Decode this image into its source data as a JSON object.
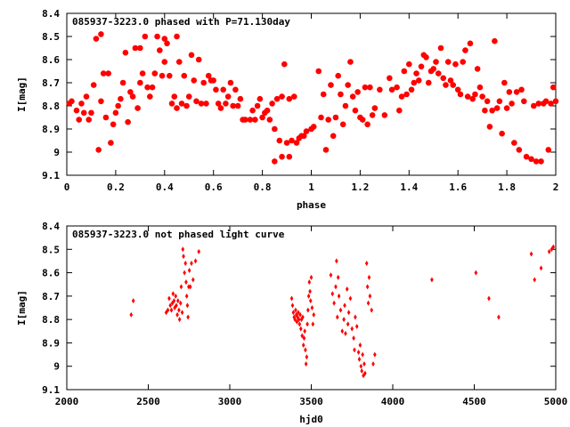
{
  "chart_data": [
    {
      "type": "scatter",
      "title": "085937-3223.0 phased with P=71.130day",
      "xlabel": "phase",
      "ylabel": "I[mag]",
      "xlim": [
        0,
        2
      ],
      "ylim": [
        9.1,
        8.4
      ],
      "y_inverted": true,
      "x_ticks": [
        "0",
        "0.2",
        "0.4",
        "0.6",
        "0.8",
        "1",
        "1.2",
        "1.4",
        "1.6",
        "1.8",
        "2"
      ],
      "y_ticks": [
        "8.4",
        "8.5",
        "8.6",
        "8.7",
        "8.8",
        "8.9",
        "9",
        "9.1"
      ],
      "marker": "filled-circle",
      "color": "#ff0000",
      "points": [
        [
          0.01,
          8.79
        ],
        [
          0.02,
          8.78
        ],
        [
          0.04,
          8.82
        ],
        [
          0.05,
          8.86
        ],
        [
          0.06,
          8.79
        ],
        [
          0.07,
          8.83
        ],
        [
          0.08,
          8.76
        ],
        [
          0.09,
          8.86
        ],
        [
          0.1,
          8.83
        ],
        [
          0.11,
          8.71
        ],
        [
          0.12,
          8.51
        ],
        [
          0.13,
          8.99
        ],
        [
          0.14,
          8.49
        ],
        [
          0.14,
          8.78
        ],
        [
          0.15,
          8.66
        ],
        [
          0.16,
          8.85
        ],
        [
          0.17,
          8.66
        ],
        [
          0.18,
          8.96
        ],
        [
          0.19,
          8.88
        ],
        [
          0.2,
          8.83
        ],
        [
          0.21,
          8.8
        ],
        [
          0.22,
          8.77
        ],
        [
          0.23,
          8.7
        ],
        [
          0.24,
          8.57
        ],
        [
          0.25,
          8.87
        ],
        [
          0.26,
          8.74
        ],
        [
          0.27,
          8.76
        ],
        [
          0.28,
          8.55
        ],
        [
          0.29,
          8.81
        ],
        [
          0.3,
          8.55
        ],
        [
          0.3,
          8.7
        ],
        [
          0.31,
          8.66
        ],
        [
          0.32,
          8.5
        ],
        [
          0.33,
          8.72
        ],
        [
          0.34,
          8.76
        ],
        [
          0.35,
          8.72
        ],
        [
          0.36,
          8.66
        ],
        [
          0.37,
          8.5
        ],
        [
          0.38,
          8.56
        ],
        [
          0.39,
          8.67
        ],
        [
          0.4,
          8.51
        ],
        [
          0.4,
          8.61
        ],
        [
          0.41,
          8.53
        ],
        [
          0.42,
          8.67
        ],
        [
          0.43,
          8.79
        ],
        [
          0.44,
          8.76
        ],
        [
          0.45,
          8.81
        ],
        [
          0.45,
          8.5
        ],
        [
          0.46,
          8.61
        ],
        [
          0.47,
          8.79
        ],
        [
          0.48,
          8.67
        ],
        [
          0.49,
          8.8
        ],
        [
          0.5,
          8.76
        ],
        [
          0.51,
          8.58
        ],
        [
          0.52,
          8.69
        ],
        [
          0.53,
          8.78
        ],
        [
          0.54,
          8.6
        ],
        [
          0.55,
          8.79
        ],
        [
          0.56,
          8.7
        ],
        [
          0.57,
          8.79
        ],
        [
          0.58,
          8.67
        ],
        [
          0.59,
          8.69
        ],
        [
          0.6,
          8.69
        ],
        [
          0.61,
          8.73
        ],
        [
          0.62,
          8.79
        ],
        [
          0.63,
          8.81
        ],
        [
          0.64,
          8.73
        ],
        [
          0.65,
          8.79
        ],
        [
          0.66,
          8.76
        ],
        [
          0.67,
          8.7
        ],
        [
          0.68,
          8.8
        ],
        [
          0.69,
          8.73
        ],
        [
          0.7,
          8.8
        ],
        [
          0.71,
          8.77
        ],
        [
          0.72,
          8.86
        ],
        [
          0.73,
          8.86
        ],
        [
          0.75,
          8.86
        ],
        [
          0.76,
          8.82
        ],
        [
          0.77,
          8.86
        ],
        [
          0.78,
          8.8
        ],
        [
          0.79,
          8.77
        ],
        [
          0.8,
          8.85
        ],
        [
          0.81,
          8.83
        ],
        [
          0.82,
          8.82
        ],
        [
          0.83,
          8.86
        ],
        [
          0.84,
          8.79
        ],
        [
          0.85,
          8.9
        ],
        [
          0.85,
          9.04
        ],
        [
          0.86,
          8.77
        ],
        [
          0.87,
          8.95
        ],
        [
          0.88,
          9.02
        ],
        [
          0.88,
          8.76
        ],
        [
          0.89,
          8.62
        ],
        [
          0.9,
          8.96
        ],
        [
          0.91,
          9.02
        ],
        [
          0.91,
          8.77
        ],
        [
          0.92,
          8.95
        ],
        [
          0.93,
          8.76
        ],
        [
          0.94,
          8.96
        ],
        [
          0.95,
          8.94
        ],
        [
          0.96,
          8.93
        ],
        [
          0.97,
          8.93
        ],
        [
          0.98,
          8.91
        ],
        [
          1.0,
          8.9
        ],
        [
          1.01,
          8.89
        ],
        [
          1.03,
          8.65
        ],
        [
          1.04,
          8.85
        ],
        [
          1.05,
          8.75
        ],
        [
          1.06,
          8.99
        ],
        [
          1.07,
          8.86
        ],
        [
          1.08,
          8.71
        ],
        [
          1.09,
          8.93
        ],
        [
          1.1,
          8.85
        ],
        [
          1.11,
          8.67
        ],
        [
          1.12,
          8.75
        ],
        [
          1.13,
          8.88
        ],
        [
          1.14,
          8.8
        ],
        [
          1.15,
          8.71
        ],
        [
          1.16,
          8.61
        ],
        [
          1.17,
          8.76
        ],
        [
          1.18,
          8.82
        ],
        [
          1.19,
          8.74
        ],
        [
          1.2,
          8.85
        ],
        [
          1.21,
          8.86
        ],
        [
          1.22,
          8.72
        ],
        [
          1.23,
          8.88
        ],
        [
          1.24,
          8.72
        ],
        [
          1.25,
          8.84
        ],
        [
          1.26,
          8.81
        ],
        [
          1.28,
          8.73
        ],
        [
          1.3,
          8.84
        ],
        [
          1.32,
          8.68
        ],
        [
          1.33,
          8.73
        ],
        [
          1.35,
          8.72
        ],
        [
          1.36,
          8.82
        ],
        [
          1.37,
          8.76
        ],
        [
          1.38,
          8.65
        ],
        [
          1.39,
          8.75
        ],
        [
          1.4,
          8.62
        ],
        [
          1.41,
          8.73
        ],
        [
          1.42,
          8.7
        ],
        [
          1.43,
          8.66
        ],
        [
          1.44,
          8.69
        ],
        [
          1.45,
          8.63
        ],
        [
          1.46,
          8.58
        ],
        [
          1.47,
          8.59
        ],
        [
          1.48,
          8.7
        ],
        [
          1.49,
          8.65
        ],
        [
          1.5,
          8.64
        ],
        [
          1.51,
          8.61
        ],
        [
          1.52,
          8.66
        ],
        [
          1.53,
          8.55
        ],
        [
          1.54,
          8.68
        ],
        [
          1.55,
          8.71
        ],
        [
          1.56,
          8.61
        ],
        [
          1.57,
          8.69
        ],
        [
          1.58,
          8.71
        ],
        [
          1.59,
          8.62
        ],
        [
          1.6,
          8.73
        ],
        [
          1.61,
          8.75
        ],
        [
          1.62,
          8.61
        ],
        [
          1.63,
          8.56
        ],
        [
          1.64,
          8.76
        ],
        [
          1.65,
          8.53
        ],
        [
          1.66,
          8.77
        ],
        [
          1.67,
          8.75
        ],
        [
          1.68,
          8.64
        ],
        [
          1.69,
          8.72
        ],
        [
          1.7,
          8.76
        ],
        [
          1.71,
          8.82
        ],
        [
          1.72,
          8.78
        ],
        [
          1.73,
          8.89
        ],
        [
          1.74,
          8.82
        ],
        [
          1.75,
          8.52
        ],
        [
          1.76,
          8.81
        ],
        [
          1.77,
          8.78
        ],
        [
          1.78,
          8.92
        ],
        [
          1.79,
          8.7
        ],
        [
          1.8,
          8.81
        ],
        [
          1.81,
          8.74
        ],
        [
          1.82,
          8.79
        ],
        [
          1.83,
          8.96
        ],
        [
          1.84,
          8.74
        ],
        [
          1.85,
          8.99
        ],
        [
          1.86,
          8.73
        ],
        [
          1.87,
          8.78
        ],
        [
          1.88,
          9.02
        ],
        [
          1.9,
          9.03
        ],
        [
          1.91,
          8.8
        ],
        [
          1.92,
          9.04
        ],
        [
          1.93,
          8.79
        ],
        [
          1.94,
          9.04
        ],
        [
          1.95,
          8.79
        ],
        [
          1.96,
          8.78
        ],
        [
          1.97,
          8.99
        ],
        [
          1.98,
          8.79
        ],
        [
          1.99,
          8.72
        ],
        [
          2.0,
          8.78
        ]
      ]
    },
    {
      "type": "scatter",
      "title": "085937-3223.0 not phased light curve",
      "xlabel": "hjd0",
      "ylabel": "I[mag]",
      "xlim": [
        2000,
        5000
      ],
      "ylim": [
        9.1,
        8.4
      ],
      "y_inverted": true,
      "x_ticks": [
        "2000",
        "2500",
        "3000",
        "3500",
        "4000",
        "4500",
        "5000"
      ],
      "y_ticks": [
        "8.4",
        "8.5",
        "8.6",
        "8.7",
        "8.8",
        "8.9",
        "9",
        "9.1"
      ],
      "marker": "small-diamond",
      "color": "#ff0000",
      "points": [
        [
          2395,
          8.78
        ],
        [
          2408,
          8.72
        ],
        [
          2610,
          8.77
        ],
        [
          2620,
          8.76
        ],
        [
          2628,
          8.71
        ],
        [
          2635,
          8.74
        ],
        [
          2642,
          8.76
        ],
        [
          2648,
          8.73
        ],
        [
          2652,
          8.69
        ],
        [
          2658,
          8.72
        ],
        [
          2662,
          8.75
        ],
        [
          2668,
          8.7
        ],
        [
          2672,
          8.74
        ],
        [
          2678,
          8.78
        ],
        [
          2682,
          8.72
        ],
        [
          2688,
          8.76
        ],
        [
          2692,
          8.8
        ],
        [
          2698,
          8.73
        ],
        [
          2702,
          8.66
        ],
        [
          2708,
          8.77
        ],
        [
          2712,
          8.5
        ],
        [
          2716,
          8.53
        ],
        [
          2722,
          8.6
        ],
        [
          2728,
          8.56
        ],
        [
          2732,
          8.64
        ],
        [
          2736,
          8.7
        ],
        [
          2740,
          8.74
        ],
        [
          2744,
          8.79
        ],
        [
          2748,
          8.66
        ],
        [
          2752,
          8.59
        ],
        [
          2758,
          8.66
        ],
        [
          2765,
          8.56
        ],
        [
          2775,
          8.63
        ],
        [
          2790,
          8.55
        ],
        [
          2810,
          8.51
        ],
        [
          3380,
          8.71
        ],
        [
          3385,
          8.74
        ],
        [
          3390,
          8.77
        ],
        [
          3395,
          8.79
        ],
        [
          3400,
          8.8
        ],
        [
          3404,
          8.76
        ],
        [
          3408,
          8.78
        ],
        [
          3412,
          8.81
        ],
        [
          3416,
          8.79
        ],
        [
          3420,
          8.77
        ],
        [
          3424,
          8.8
        ],
        [
          3428,
          8.82
        ],
        [
          3432,
          8.78
        ],
        [
          3436,
          8.84
        ],
        [
          3440,
          8.8
        ],
        [
          3444,
          8.87
        ],
        [
          3448,
          8.79
        ],
        [
          3452,
          8.91
        ],
        [
          3456,
          8.88
        ],
        [
          3460,
          8.85
        ],
        [
          3464,
          8.93
        ],
        [
          3468,
          8.99
        ],
        [
          3472,
          8.96
        ],
        [
          3476,
          8.82
        ],
        [
          3480,
          8.76
        ],
        [
          3484,
          8.7
        ],
        [
          3488,
          8.64
        ],
        [
          3492,
          8.68
        ],
        [
          3496,
          8.72
        ],
        [
          3500,
          8.62
        ],
        [
          3505,
          8.75
        ],
        [
          3510,
          8.82
        ],
        [
          3515,
          8.78
        ],
        [
          3620,
          8.61
        ],
        [
          3630,
          8.69
        ],
        [
          3640,
          8.73
        ],
        [
          3650,
          8.66
        ],
        [
          3655,
          8.55
        ],
        [
          3660,
          8.79
        ],
        [
          3665,
          8.62
        ],
        [
          3670,
          8.7
        ],
        [
          3680,
          8.76
        ],
        [
          3690,
          8.85
        ],
        [
          3700,
          8.8
        ],
        [
          3705,
          8.74
        ],
        [
          3710,
          8.86
        ],
        [
          3720,
          8.67
        ],
        [
          3725,
          8.82
        ],
        [
          3730,
          8.77
        ],
        [
          3740,
          8.71
        ],
        [
          3750,
          8.84
        ],
        [
          3760,
          8.88
        ],
        [
          3765,
          8.93
        ],
        [
          3770,
          8.79
        ],
        [
          3780,
          8.83
        ],
        [
          3790,
          8.94
        ],
        [
          3795,
          8.97
        ],
        [
          3800,
          8.91
        ],
        [
          3805,
          9.0
        ],
        [
          3810,
          9.02
        ],
        [
          3815,
          8.95
        ],
        [
          3820,
          9.04
        ],
        [
          3825,
          8.99
        ],
        [
          3830,
          9.03
        ],
        [
          3840,
          8.56
        ],
        [
          3845,
          8.66
        ],
        [
          3850,
          8.73
        ],
        [
          3855,
          8.62
        ],
        [
          3860,
          8.7
        ],
        [
          3870,
          8.76
        ],
        [
          3880,
          8.99
        ],
        [
          3890,
          8.95
        ],
        [
          4240,
          8.63
        ],
        [
          4510,
          8.6
        ],
        [
          4590,
          8.71
        ],
        [
          4650,
          8.79
        ],
        [
          4850,
          8.52
        ],
        [
          4870,
          8.63
        ],
        [
          4910,
          8.58
        ],
        [
          4960,
          8.51
        ],
        [
          4975,
          8.5
        ],
        [
          4985,
          8.49
        ]
      ]
    }
  ]
}
